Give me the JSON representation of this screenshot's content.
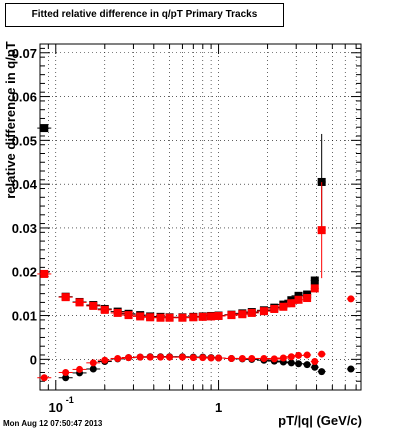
{
  "chart_data": {
    "type": "scatter",
    "title": "Fitted relative difference in q/pT  Primary Tracks",
    "xlabel": "pT/|q| (GeV/c)",
    "ylabel": "relative difference in q/pT",
    "x_scale": "log",
    "xlim": [
      0.08,
      7.5
    ],
    "ylim": [
      -0.007,
      0.072
    ],
    "grid": true,
    "y_ticks": [
      {
        "value": 0,
        "label": "0"
      },
      {
        "value": 0.01,
        "label": "0.01"
      },
      {
        "value": 0.02,
        "label": "0.02"
      },
      {
        "value": 0.03,
        "label": "0.03"
      },
      {
        "value": 0.04,
        "label": "0.04"
      },
      {
        "value": 0.05,
        "label": "0.05"
      },
      {
        "value": 0.06,
        "label": "0.06"
      },
      {
        "value": 0.07,
        "label": "0.07"
      }
    ],
    "x_ticks": [
      {
        "value": 0.1,
        "label": "10",
        "exponent": "-1"
      },
      {
        "value": 1,
        "label": "1",
        "exponent": ""
      }
    ],
    "series": [
      {
        "color": "#000000",
        "marker": "square",
        "x": [
          0.085,
          0.115,
          0.14,
          0.17,
          0.2,
          0.24,
          0.28,
          0.33,
          0.38,
          0.44,
          0.5,
          0.6,
          0.7,
          0.8,
          0.9,
          1.0,
          1.2,
          1.4,
          1.6,
          1.9,
          2.2,
          2.5,
          2.8,
          3.1,
          3.5,
          3.9,
          4.3
        ],
        "y": [
          0.0528,
          0.0143,
          0.0131,
          0.0124,
          0.0115,
          0.0109,
          0.0104,
          0.0101,
          0.0098,
          0.0097,
          0.0096,
          0.0096,
          0.0097,
          0.0098,
          0.0099,
          0.01,
          0.0102,
          0.0105,
          0.0108,
          0.0112,
          0.0118,
          0.0125,
          0.0135,
          0.0145,
          0.0148,
          0.018,
          0.0405
        ]
      },
      {
        "color": "#ff0000",
        "marker": "square",
        "x": [
          0.085,
          0.115,
          0.14,
          0.17,
          0.2,
          0.24,
          0.28,
          0.33,
          0.38,
          0.44,
          0.5,
          0.6,
          0.7,
          0.8,
          0.9,
          1.0,
          1.2,
          1.4,
          1.6,
          1.9,
          2.2,
          2.5,
          2.8,
          3.1,
          3.5,
          3.9,
          4.3
        ],
        "y": [
          0.0195,
          0.0142,
          0.013,
          0.0122,
          0.0113,
          0.0106,
          0.0101,
          0.0098,
          0.0096,
          0.0095,
          0.0095,
          0.0095,
          0.0096,
          0.0097,
          0.0098,
          0.0099,
          0.0101,
          0.0103,
          0.0106,
          0.011,
          0.0115,
          0.012,
          0.0128,
          0.0136,
          0.014,
          0.0162,
          0.0295
        ]
      },
      {
        "color": "#000000",
        "marker": "circle",
        "x": [
          0.115,
          0.14,
          0.17,
          0.2,
          0.24,
          0.28,
          0.33,
          0.38,
          0.44,
          0.5,
          0.6,
          0.7,
          0.8,
          0.9,
          1.0,
          1.2,
          1.4,
          1.6,
          1.9,
          2.2,
          2.5,
          2.8,
          3.1,
          3.5,
          3.9,
          4.3,
          6.5
        ],
        "y": [
          -0.0042,
          -0.0031,
          -0.0022,
          -0.0005,
          0.0001,
          0.0004,
          0.0005,
          0.0006,
          0.0006,
          0.0006,
          0.0006,
          0.0005,
          0.0005,
          0.0004,
          0.0003,
          0.0002,
          0.0001,
          0.0,
          -0.0002,
          -0.0004,
          -0.0006,
          -0.0008,
          -0.001,
          -0.0012,
          -0.0018,
          -0.0028,
          -0.0022
        ]
      },
      {
        "color": "#ff0000",
        "marker": "circle",
        "x": [
          0.085,
          0.115,
          0.14,
          0.17,
          0.2,
          0.24,
          0.28,
          0.33,
          0.38,
          0.44,
          0.5,
          0.6,
          0.7,
          0.8,
          0.9,
          1.0,
          1.2,
          1.4,
          1.6,
          1.9,
          2.2,
          2.5,
          2.8,
          3.1,
          3.5,
          3.9,
          4.3,
          6.5
        ],
        "y": [
          -0.0042,
          -0.003,
          -0.0023,
          -0.0008,
          -0.0002,
          0.0002,
          0.0004,
          0.0005,
          0.0005,
          0.0005,
          0.0005,
          0.0005,
          0.0004,
          0.0004,
          0.0003,
          0.0003,
          0.0002,
          0.0002,
          0.0002,
          0.0002,
          0.0001,
          0.0003,
          0.0006,
          0.0009,
          0.001,
          -0.0005,
          0.0012,
          0.0138
        ]
      }
    ]
  },
  "footer": "Mon Aug 12 07:50:47 2013"
}
